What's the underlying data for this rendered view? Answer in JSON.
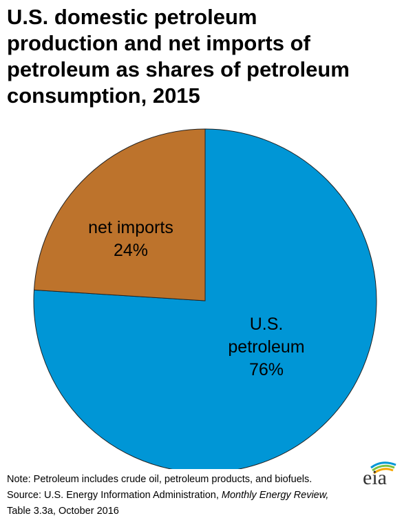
{
  "chart_data": {
    "type": "pie",
    "title": [
      "U.S. domestic petroleum",
      "production and net imports of",
      "petroleum as shares of petroleum",
      "consumption, 2015"
    ],
    "slices": [
      {
        "label": [
          "U.S.",
          "petroleum"
        ],
        "value": 76,
        "value_label": "76%",
        "color": "#0096d6"
      },
      {
        "label": [
          "net imports"
        ],
        "value": 24,
        "value_label": "24%",
        "color": "#bd732c"
      }
    ],
    "start_angle_deg": 0,
    "direction": "clockwise"
  },
  "footer": {
    "note": "Note: Petroleum includes crude oil, petroleum products, and biofuels.",
    "source_prefix": "Source: U.S. Energy Information Administration, ",
    "source_title": "Monthly Energy Review,",
    "source_suffix": "Table 3.3a, October 2016"
  },
  "logo": {
    "text": "eia",
    "colors": [
      "#0096d6",
      "#7ac143",
      "#f7a800"
    ]
  }
}
